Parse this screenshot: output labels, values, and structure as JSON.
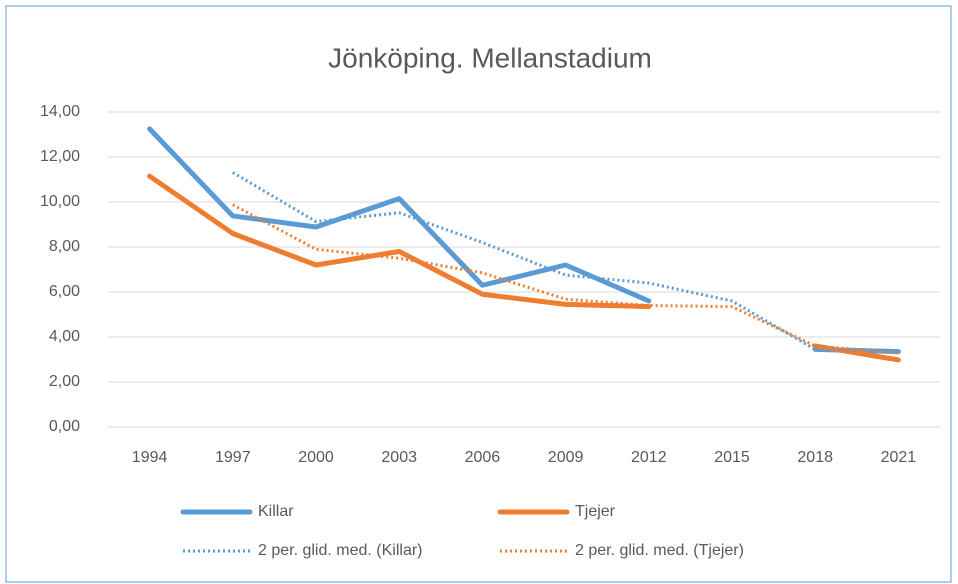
{
  "chart_data": {
    "type": "line",
    "title": "Jönköping. Mellanstadium",
    "categories": [
      "1994",
      "1997",
      "2000",
      "2003",
      "2006",
      "2009",
      "2012",
      "2015",
      "2018",
      "2021"
    ],
    "series": [
      {
        "name": "Killar",
        "color": "#5b9bd5",
        "style": "solid",
        "values": [
          13.25,
          9.38,
          8.89,
          10.15,
          6.3,
          7.2,
          5.6,
          null,
          3.45,
          3.35
        ]
      },
      {
        "name": "Tjejer",
        "color": "#ed7d31",
        "style": "solid",
        "values": [
          11.15,
          8.6,
          7.2,
          7.8,
          5.9,
          5.45,
          5.35,
          null,
          3.6,
          2.98
        ]
      },
      {
        "name": "2 per. glid. med. (Killar)",
        "color": "#5b9bd5",
        "style": "dotted",
        "values": [
          null,
          11.31,
          9.13,
          9.52,
          8.2,
          6.75,
          6.4,
          5.6,
          3.45,
          3.4
        ]
      },
      {
        "name": "2 per. glid. med. (Tjejer)",
        "color": "#ed7d31",
        "style": "dotted",
        "values": [
          null,
          9.88,
          7.9,
          7.5,
          6.85,
          5.68,
          5.4,
          5.35,
          3.6,
          3.29
        ]
      }
    ],
    "ylim": [
      0,
      14
    ],
    "yticks": [
      {
        "value": 0,
        "label": "0,00"
      },
      {
        "value": 2,
        "label": "2,00"
      },
      {
        "value": 4,
        "label": "4,00"
      },
      {
        "value": 6,
        "label": "6,00"
      },
      {
        "value": 8,
        "label": "8,00"
      },
      {
        "value": 10,
        "label": "10,00"
      },
      {
        "value": 12,
        "label": "12,00"
      },
      {
        "value": 14,
        "label": "14,00"
      }
    ],
    "grid": true,
    "legend": "bottom"
  }
}
